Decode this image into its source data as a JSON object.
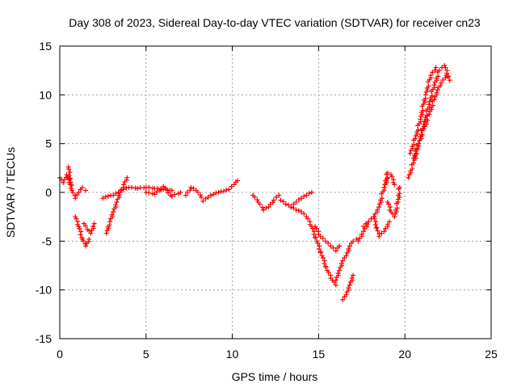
{
  "chart_data": {
    "type": "scatter",
    "title": "Day 308 of 2023, Sidereal Day-to-day VTEC variation (SDTVAR) for receiver cn23",
    "xlabel": "GPS time / hours",
    "ylabel": "SDTVAR / TECUs",
    "xlim": [
      0,
      25
    ],
    "ylim": [
      -15,
      15
    ],
    "xticks": [
      "0",
      "5",
      "10",
      "15",
      "20",
      "25"
    ],
    "yticks": [
      "15",
      "10",
      "5",
      "0",
      "-5",
      "-10",
      "-15"
    ],
    "grid": true,
    "marker": "+",
    "series_color": "#ff0000",
    "series": [
      {
        "name": "arc1",
        "x": [
          0.0,
          0.2,
          0.4,
          0.6
        ],
        "y": [
          1.5,
          1.0,
          1.8,
          0.8
        ]
      },
      {
        "name": "arc2",
        "x": [
          0.5,
          0.7,
          0.9,
          1.1,
          1.3,
          1.5
        ],
        "y": [
          2.6,
          0.2,
          -0.6,
          0.0,
          0.5,
          0.2
        ]
      },
      {
        "name": "arc3",
        "x": [
          0.9,
          1.1,
          1.3,
          1.5,
          1.7
        ],
        "y": [
          -2.5,
          -3.5,
          -4.8,
          -5.5,
          -4.8
        ]
      },
      {
        "name": "arc4",
        "x": [
          1.4,
          1.6,
          1.8,
          2.0
        ],
        "y": [
          -3.2,
          -3.8,
          -4.2,
          -3.2
        ]
      },
      {
        "name": "arc5",
        "x": [
          2.5,
          2.8,
          3.1,
          3.4,
          3.7,
          4.0,
          4.5,
          5.0,
          5.5,
          6.0,
          6.5
        ],
        "y": [
          -0.6,
          -0.4,
          -0.3,
          0.0,
          0.3,
          0.5,
          0.4,
          0.5,
          0.4,
          0.3,
          0.2
        ]
      },
      {
        "name": "arc6",
        "x": [
          2.7,
          2.9,
          3.1,
          3.3,
          3.5,
          3.7,
          3.9
        ],
        "y": [
          -4.2,
          -3.0,
          -2.0,
          -1.0,
          0.0,
          0.8,
          1.5
        ]
      },
      {
        "name": "arc7",
        "x": [
          5.0,
          5.5,
          6.0,
          6.5,
          7.0
        ],
        "y": [
          0.0,
          -0.2,
          0.6,
          -0.4,
          0.0
        ]
      },
      {
        "name": "arc8",
        "x": [
          7.3,
          7.6,
          7.9,
          8.2
        ],
        "y": [
          -0.3,
          0.5,
          0.2,
          -0.5
        ]
      },
      {
        "name": "arc9",
        "x": [
          8.3,
          8.6,
          8.9,
          9.2,
          9.5,
          9.8,
          10.1,
          10.3
        ],
        "y": [
          -0.9,
          -0.5,
          -0.2,
          0.0,
          0.1,
          0.3,
          0.8,
          1.2
        ]
      },
      {
        "name": "arc10",
        "x": [
          11.2,
          11.5,
          11.8,
          12.1,
          12.4,
          12.7
        ],
        "y": [
          -0.3,
          -1.0,
          -1.8,
          -1.5,
          -0.8,
          -0.3
        ]
      },
      {
        "name": "arc11",
        "x": [
          12.8,
          13.1,
          13.4,
          13.7,
          14.0,
          14.3,
          14.6
        ],
        "y": [
          -0.8,
          -1.2,
          -1.5,
          -1.0,
          -0.6,
          -0.3,
          0.0
        ]
      },
      {
        "name": "arc12",
        "x": [
          13.4,
          13.7,
          14.0,
          14.3,
          14.6,
          14.9,
          15.2,
          15.5,
          15.8,
          16.0
        ],
        "y": [
          -1.5,
          -1.8,
          -2.0,
          -2.5,
          -3.5,
          -5.0,
          -6.5,
          -8.0,
          -9.0,
          -9.5
        ]
      },
      {
        "name": "arc13",
        "x": [
          14.8,
          15.1,
          15.4,
          15.7,
          16.0,
          16.2
        ],
        "y": [
          -3.5,
          -4.5,
          -5.0,
          -5.5,
          -6.0,
          -5.5
        ]
      },
      {
        "name": "arc14",
        "x": [
          16.0,
          16.2,
          16.4,
          16.6,
          16.8,
          17.0,
          17.2
        ],
        "y": [
          -9.0,
          -8.0,
          -7.0,
          -6.5,
          -5.5,
          -5.0,
          -4.8
        ]
      },
      {
        "name": "arc15",
        "x": [
          16.4,
          16.6,
          16.8,
          17.0
        ],
        "y": [
          -11.0,
          -10.5,
          -9.5,
          -8.5
        ]
      },
      {
        "name": "arc16",
        "x": [
          17.3,
          17.6,
          17.9,
          18.2,
          18.5,
          18.8,
          19.0
        ],
        "y": [
          -5.0,
          -4.0,
          -3.0,
          -2.5,
          -1.5,
          0.5,
          2.0
        ]
      },
      {
        "name": "arc17",
        "x": [
          17.6,
          17.9,
          18.2,
          18.5,
          18.8,
          19.1
        ],
        "y": [
          -3.5,
          -3.0,
          -2.5,
          -4.5,
          -4.0,
          -3.0
        ]
      },
      {
        "name": "arc18",
        "x": [
          18.8,
          19.0,
          19.2,
          19.4
        ],
        "y": [
          0.5,
          1.5,
          1.8,
          0.8
        ]
      },
      {
        "name": "arc19",
        "x": [
          19.0,
          19.2,
          19.4,
          19.6,
          19.7
        ],
        "y": [
          -1.0,
          -2.0,
          -2.5,
          -1.0,
          0.5
        ]
      },
      {
        "name": "arc20",
        "x": [
          20.2,
          20.5,
          20.8,
          21.1,
          21.4,
          21.7,
          22.0,
          22.3,
          22.6
        ],
        "y": [
          1.5,
          3.0,
          5.0,
          7.0,
          9.0,
          11.0,
          12.5,
          13.0,
          11.5
        ]
      },
      {
        "name": "arc21",
        "x": [
          20.5,
          20.8,
          21.1,
          21.4,
          21.7,
          21.9,
          22.1,
          22.4
        ],
        "y": [
          3.5,
          5.0,
          6.5,
          8.0,
          9.5,
          10.5,
          11.2,
          12.0
        ]
      },
      {
        "name": "arc22",
        "x": [
          20.3,
          20.6,
          20.9,
          21.2,
          21.5,
          21.8
        ],
        "y": [
          4.0,
          5.5,
          7.5,
          10.0,
          12.0,
          12.8
        ]
      }
    ]
  }
}
